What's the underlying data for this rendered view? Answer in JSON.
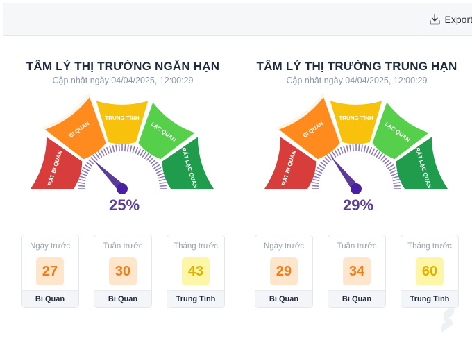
{
  "toolbar": {
    "export_label": "Export",
    "export_icon": "download-icon"
  },
  "zones": [
    {
      "label": "RẤT BI QUAN",
      "color": "#d73d3a"
    },
    {
      "label": "BI QUAN",
      "color": "#ff8a1d"
    },
    {
      "label": "TRUNG TÍNH",
      "color": "#f8c20c"
    },
    {
      "label": "LẠC QUAN",
      "color": "#56d04b"
    },
    {
      "label": "RẤT LẠC QUAN",
      "color": "#1f9d4d"
    }
  ],
  "colors": {
    "needle": "#5b3b9a",
    "needle_tip": "#4b1ea6",
    "highlight": "#fff5e6"
  },
  "gauges": [
    {
      "title": "TÂM LÝ THỊ TRƯỜNG NGẮN HẠN",
      "updated": "Cập nhật ngày 04/04/2025, 12:00:29",
      "value": 25,
      "value_text": "25%",
      "history": [
        {
          "label": "Ngày trước",
          "value": "27",
          "status": "Bi Quan",
          "bg": "#fde6cc",
          "fg": "#ef7d1a"
        },
        {
          "label": "Tuần trước",
          "value": "30",
          "status": "Bi Quan",
          "bg": "#fde6cc",
          "fg": "#ef7d1a"
        },
        {
          "label": "Tháng trước",
          "value": "43",
          "status": "Trung Tính",
          "bg": "#fdf6a6",
          "fg": "#e0b000"
        }
      ]
    },
    {
      "title": "TÂM LÝ THỊ TRƯỜNG TRUNG HẠN",
      "updated": "Cập nhật ngày 04/04/2025, 12:00:29",
      "value": 29,
      "value_text": "29%",
      "history": [
        {
          "label": "Ngày trước",
          "value": "29",
          "status": "Bi Quan",
          "bg": "#fde6cc",
          "fg": "#ef7d1a"
        },
        {
          "label": "Tuần trước",
          "value": "34",
          "status": "Bi Quan",
          "bg": "#fde6cc",
          "fg": "#ef7d1a"
        },
        {
          "label": "Tháng trước",
          "value": "60",
          "status": "Trung Tính",
          "bg": "#fdf6a6",
          "fg": "#e0b000"
        }
      ]
    }
  ]
}
